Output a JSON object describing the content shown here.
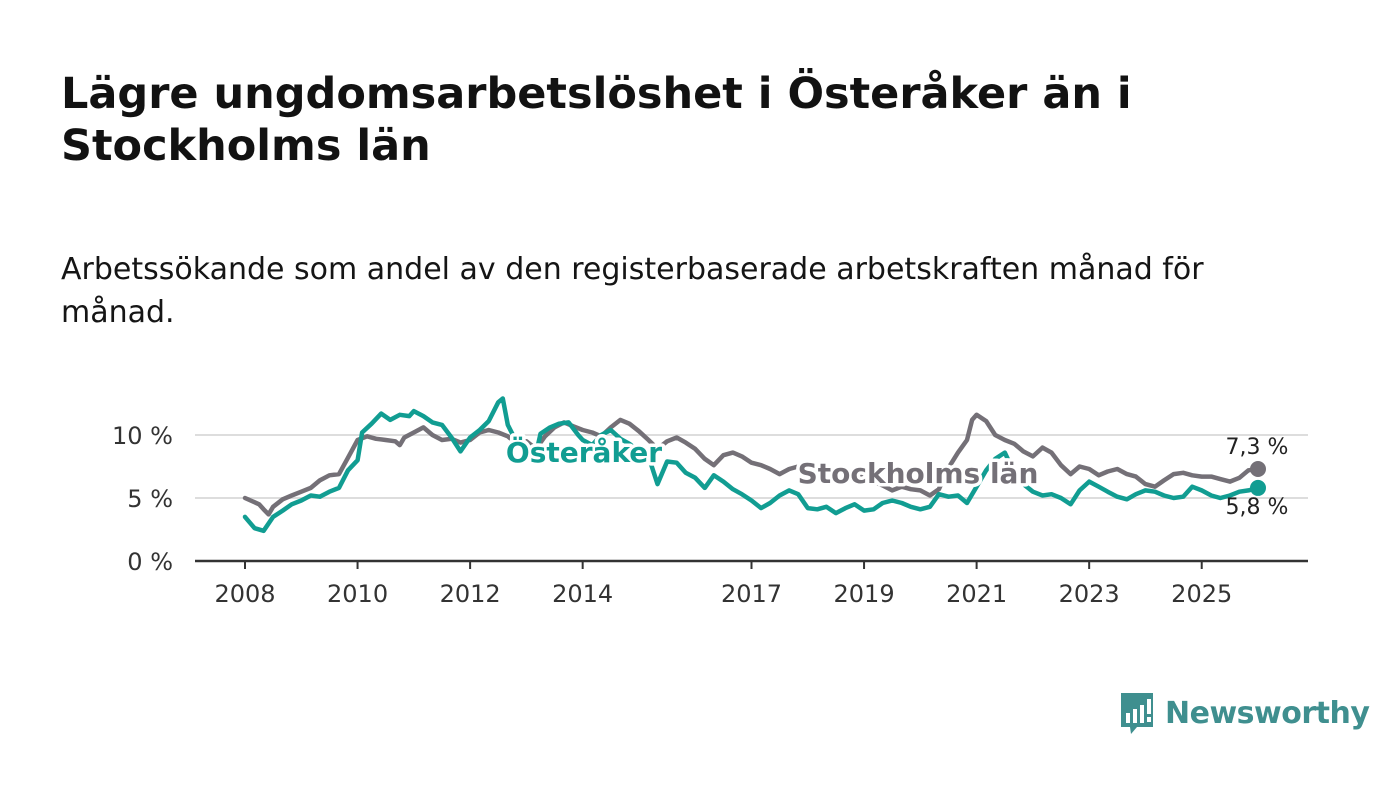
{
  "title": "Lägre ungdomsarbetslöshet i Österåker än i Stockholms län",
  "subtitle": "Arbetssökande som andel av den registerbaserade arbetskraften månad för månad.",
  "brand": {
    "name": "Newsworthy",
    "icon": "newsworthy-chart-bubble-icon",
    "color": "#3f8f8f"
  },
  "colors": {
    "osteraker": "#119d92",
    "stockholm": "#747077",
    "grid": "#dddddd",
    "axis": "#333333"
  },
  "chart_data": {
    "type": "line",
    "title": "Lägre ungdomsarbetslöshet i Österåker än i Stockholms län",
    "xlabel": "",
    "ylabel": "",
    "xlim": [
      2008,
      2026.0
    ],
    "ylim": [
      0,
      12
    ],
    "grid": true,
    "y_ticks": [
      {
        "value": 0,
        "label": "0 %"
      },
      {
        "value": 5,
        "label": "5 %"
      },
      {
        "value": 10,
        "label": "10 %"
      }
    ],
    "x_ticks": [
      {
        "value": 2008,
        "label": "2008"
      },
      {
        "value": 2010,
        "label": "2010"
      },
      {
        "value": 2012,
        "label": "2012"
      },
      {
        "value": 2014,
        "label": "2014"
      },
      {
        "value": 2017,
        "label": "2017"
      },
      {
        "value": 2019,
        "label": "2019"
      },
      {
        "value": 2021,
        "label": "2021"
      },
      {
        "value": 2023,
        "label": "2023"
      },
      {
        "value": 2025,
        "label": "2025"
      }
    ],
    "series": [
      {
        "name": "Stockholms län",
        "color": "#747077",
        "last_value_label": "7,3 %",
        "points": [
          [
            2008.0,
            5.0
          ],
          [
            2008.25,
            4.5
          ],
          [
            2008.33,
            4.1
          ],
          [
            2008.42,
            3.7
          ],
          [
            2008.5,
            4.3
          ],
          [
            2008.67,
            4.9
          ],
          [
            2008.83,
            5.2
          ],
          [
            2009.0,
            5.5
          ],
          [
            2009.17,
            5.8
          ],
          [
            2009.33,
            6.4
          ],
          [
            2009.5,
            6.8
          ],
          [
            2009.67,
            6.9
          ],
          [
            2009.83,
            8.2
          ],
          [
            2010.0,
            9.6
          ],
          [
            2010.17,
            9.9
          ],
          [
            2010.33,
            9.7
          ],
          [
            2010.5,
            9.6
          ],
          [
            2010.67,
            9.5
          ],
          [
            2010.75,
            9.2
          ],
          [
            2010.83,
            9.8
          ],
          [
            2011.0,
            10.2
          ],
          [
            2011.17,
            10.6
          ],
          [
            2011.33,
            10.0
          ],
          [
            2011.5,
            9.6
          ],
          [
            2011.67,
            9.7
          ],
          [
            2011.83,
            9.4
          ],
          [
            2012.0,
            9.6
          ],
          [
            2012.17,
            10.2
          ],
          [
            2012.33,
            10.4
          ],
          [
            2012.5,
            10.2
          ],
          [
            2012.67,
            9.9
          ],
          [
            2012.83,
            9.3
          ],
          [
            2013.0,
            9.5
          ],
          [
            2013.17,
            8.9
          ],
          [
            2013.33,
            9.9
          ],
          [
            2013.5,
            10.6
          ],
          [
            2013.67,
            11.0
          ],
          [
            2013.83,
            10.7
          ],
          [
            2014.0,
            10.4
          ],
          [
            2014.17,
            10.2
          ],
          [
            2014.33,
            9.9
          ],
          [
            2014.5,
            10.6
          ],
          [
            2014.67,
            11.2
          ],
          [
            2014.83,
            10.9
          ],
          [
            2015.0,
            10.3
          ],
          [
            2015.17,
            9.6
          ],
          [
            2015.33,
            8.9
          ],
          [
            2015.5,
            9.5
          ],
          [
            2015.67,
            9.8
          ],
          [
            2015.83,
            9.4
          ],
          [
            2016.0,
            8.9
          ],
          [
            2016.17,
            8.1
          ],
          [
            2016.33,
            7.6
          ],
          [
            2016.5,
            8.4
          ],
          [
            2016.67,
            8.6
          ],
          [
            2016.83,
            8.3
          ],
          [
            2017.0,
            7.8
          ],
          [
            2017.17,
            7.6
          ],
          [
            2017.33,
            7.3
          ],
          [
            2017.5,
            6.9
          ],
          [
            2017.67,
            7.3
          ],
          [
            2017.83,
            7.5
          ],
          [
            2018.0,
            7.1
          ],
          [
            2018.17,
            6.9
          ],
          [
            2018.33,
            6.6
          ],
          [
            2018.5,
            6.2
          ],
          [
            2018.67,
            6.8
          ],
          [
            2018.83,
            7.0
          ],
          [
            2019.0,
            6.7
          ],
          [
            2019.17,
            6.3
          ],
          [
            2019.33,
            6.0
          ],
          [
            2019.5,
            5.6
          ],
          [
            2019.67,
            5.9
          ],
          [
            2019.83,
            5.7
          ],
          [
            2020.0,
            5.6
          ],
          [
            2020.17,
            5.2
          ],
          [
            2020.33,
            5.7
          ],
          [
            2020.5,
            7.4
          ],
          [
            2020.67,
            8.6
          ],
          [
            2020.83,
            9.6
          ],
          [
            2020.92,
            11.2
          ],
          [
            2021.0,
            11.6
          ],
          [
            2021.17,
            11.1
          ],
          [
            2021.33,
            10.0
          ],
          [
            2021.5,
            9.6
          ],
          [
            2021.67,
            9.3
          ],
          [
            2021.83,
            8.7
          ],
          [
            2022.0,
            8.3
          ],
          [
            2022.17,
            9.0
          ],
          [
            2022.33,
            8.6
          ],
          [
            2022.5,
            7.6
          ],
          [
            2022.67,
            6.9
          ],
          [
            2022.83,
            7.5
          ],
          [
            2023.0,
            7.3
          ],
          [
            2023.17,
            6.8
          ],
          [
            2023.33,
            7.1
          ],
          [
            2023.5,
            7.3
          ],
          [
            2023.67,
            6.9
          ],
          [
            2023.83,
            6.7
          ],
          [
            2024.0,
            6.1
          ],
          [
            2024.17,
            5.9
          ],
          [
            2024.33,
            6.4
          ],
          [
            2024.5,
            6.9
          ],
          [
            2024.67,
            7.0
          ],
          [
            2024.83,
            6.8
          ],
          [
            2025.0,
            6.7
          ],
          [
            2025.17,
            6.7
          ],
          [
            2025.33,
            6.5
          ],
          [
            2025.5,
            6.3
          ],
          [
            2025.67,
            6.6
          ],
          [
            2025.83,
            7.2
          ],
          [
            2026.0,
            7.3
          ]
        ]
      },
      {
        "name": "Österåker",
        "color": "#119d92",
        "last_value_label": "5,8 %",
        "points": [
          [
            2008.0,
            3.5
          ],
          [
            2008.17,
            2.6
          ],
          [
            2008.33,
            2.4
          ],
          [
            2008.5,
            3.5
          ],
          [
            2008.67,
            4.0
          ],
          [
            2008.83,
            4.5
          ],
          [
            2009.0,
            4.8
          ],
          [
            2009.17,
            5.2
          ],
          [
            2009.33,
            5.1
          ],
          [
            2009.5,
            5.5
          ],
          [
            2009.67,
            5.8
          ],
          [
            2009.83,
            7.2
          ],
          [
            2010.0,
            8.0
          ],
          [
            2010.08,
            10.2
          ],
          [
            2010.25,
            10.9
          ],
          [
            2010.42,
            11.7
          ],
          [
            2010.58,
            11.2
          ],
          [
            2010.75,
            11.6
          ],
          [
            2010.92,
            11.5
          ],
          [
            2011.0,
            11.9
          ],
          [
            2011.17,
            11.5
          ],
          [
            2011.33,
            11.0
          ],
          [
            2011.5,
            10.8
          ],
          [
            2011.67,
            9.8
          ],
          [
            2011.83,
            8.7
          ],
          [
            2012.0,
            9.8
          ],
          [
            2012.17,
            10.4
          ],
          [
            2012.33,
            11.1
          ],
          [
            2012.5,
            12.6
          ],
          [
            2012.58,
            12.9
          ],
          [
            2012.67,
            10.8
          ],
          [
            2012.83,
            9.4
          ],
          [
            2013.0,
            9.3
          ],
          [
            2013.17,
            8.5
          ],
          [
            2013.25,
            10.1
          ],
          [
            2013.42,
            10.6
          ],
          [
            2013.58,
            10.9
          ],
          [
            2013.75,
            11.0
          ],
          [
            2013.92,
            10.0
          ],
          [
            2014.0,
            9.6
          ],
          [
            2014.17,
            9.2
          ],
          [
            2014.33,
            10.0
          ],
          [
            2014.5,
            10.4
          ],
          [
            2014.67,
            9.7
          ],
          [
            2014.83,
            9.3
          ],
          [
            2015.0,
            8.7
          ],
          [
            2015.17,
            8.3
          ],
          [
            2015.33,
            6.1
          ],
          [
            2015.5,
            7.9
          ],
          [
            2015.67,
            7.8
          ],
          [
            2015.83,
            7.0
          ],
          [
            2016.0,
            6.6
          ],
          [
            2016.17,
            5.8
          ],
          [
            2016.33,
            6.8
          ],
          [
            2016.5,
            6.3
          ],
          [
            2016.67,
            5.7
          ],
          [
            2016.83,
            5.3
          ],
          [
            2017.0,
            4.8
          ],
          [
            2017.17,
            4.2
          ],
          [
            2017.33,
            4.6
          ],
          [
            2017.5,
            5.2
          ],
          [
            2017.67,
            5.6
          ],
          [
            2017.83,
            5.3
          ],
          [
            2018.0,
            4.2
          ],
          [
            2018.17,
            4.1
          ],
          [
            2018.33,
            4.3
          ],
          [
            2018.5,
            3.8
          ],
          [
            2018.67,
            4.2
          ],
          [
            2018.83,
            4.5
          ],
          [
            2019.0,
            4.0
          ],
          [
            2019.17,
            4.1
          ],
          [
            2019.33,
            4.6
          ],
          [
            2019.5,
            4.8
          ],
          [
            2019.67,
            4.6
          ],
          [
            2019.83,
            4.3
          ],
          [
            2020.0,
            4.1
          ],
          [
            2020.17,
            4.3
          ],
          [
            2020.33,
            5.3
          ],
          [
            2020.5,
            5.1
          ],
          [
            2020.67,
            5.2
          ],
          [
            2020.83,
            4.6
          ],
          [
            2021.0,
            5.9
          ],
          [
            2021.17,
            7.2
          ],
          [
            2021.33,
            8.1
          ],
          [
            2021.5,
            8.6
          ],
          [
            2021.67,
            7.0
          ],
          [
            2021.83,
            6.1
          ],
          [
            2022.0,
            5.5
          ],
          [
            2022.17,
            5.2
          ],
          [
            2022.33,
            5.3
          ],
          [
            2022.5,
            5.0
          ],
          [
            2022.67,
            4.5
          ],
          [
            2022.83,
            5.6
          ],
          [
            2023.0,
            6.3
          ],
          [
            2023.17,
            5.9
          ],
          [
            2023.33,
            5.5
          ],
          [
            2023.5,
            5.1
          ],
          [
            2023.67,
            4.9
          ],
          [
            2023.83,
            5.3
          ],
          [
            2024.0,
            5.6
          ],
          [
            2024.17,
            5.5
          ],
          [
            2024.33,
            5.2
          ],
          [
            2024.5,
            5.0
          ],
          [
            2024.67,
            5.1
          ],
          [
            2024.83,
            5.9
          ],
          [
            2025.0,
            5.6
          ],
          [
            2025.17,
            5.2
          ],
          [
            2025.33,
            5.0
          ],
          [
            2025.5,
            5.2
          ],
          [
            2025.67,
            5.5
          ],
          [
            2025.83,
            5.6
          ],
          [
            2026.0,
            5.8
          ]
        ]
      }
    ]
  }
}
